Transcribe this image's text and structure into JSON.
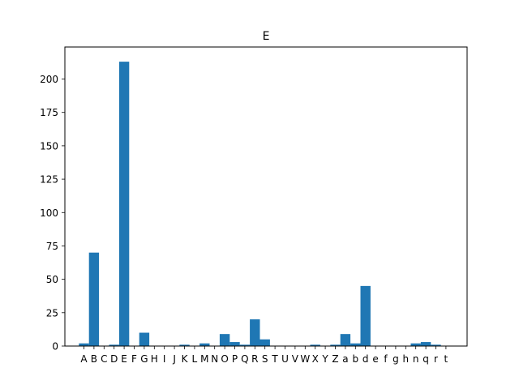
{
  "chart_data": {
    "type": "bar",
    "title": "E",
    "xlabel": "",
    "ylabel": "",
    "ylim": [
      0,
      224
    ],
    "yticks": [
      0,
      25,
      50,
      75,
      100,
      125,
      150,
      175,
      200
    ],
    "grid": false,
    "bar_color": "#1f77b4",
    "categories": [
      "A",
      "B",
      "C",
      "D",
      "E",
      "F",
      "G",
      "H",
      "I",
      "J",
      "K",
      "L",
      "M",
      "N",
      "O",
      "P",
      "Q",
      "R",
      "S",
      "T",
      "U",
      "V",
      "W",
      "X",
      "Y",
      "Z",
      "a",
      "b",
      "d",
      "e",
      "f",
      "g",
      "h",
      "n",
      "q",
      "r",
      "t"
    ],
    "values": [
      2,
      70,
      0,
      1,
      213,
      0,
      10,
      0,
      0,
      0,
      1,
      0,
      2,
      0,
      9,
      3,
      1,
      20,
      5,
      0,
      0,
      0,
      0,
      1,
      0,
      1,
      9,
      2,
      45,
      0,
      0,
      0,
      0,
      2,
      3,
      1,
      0
    ]
  }
}
